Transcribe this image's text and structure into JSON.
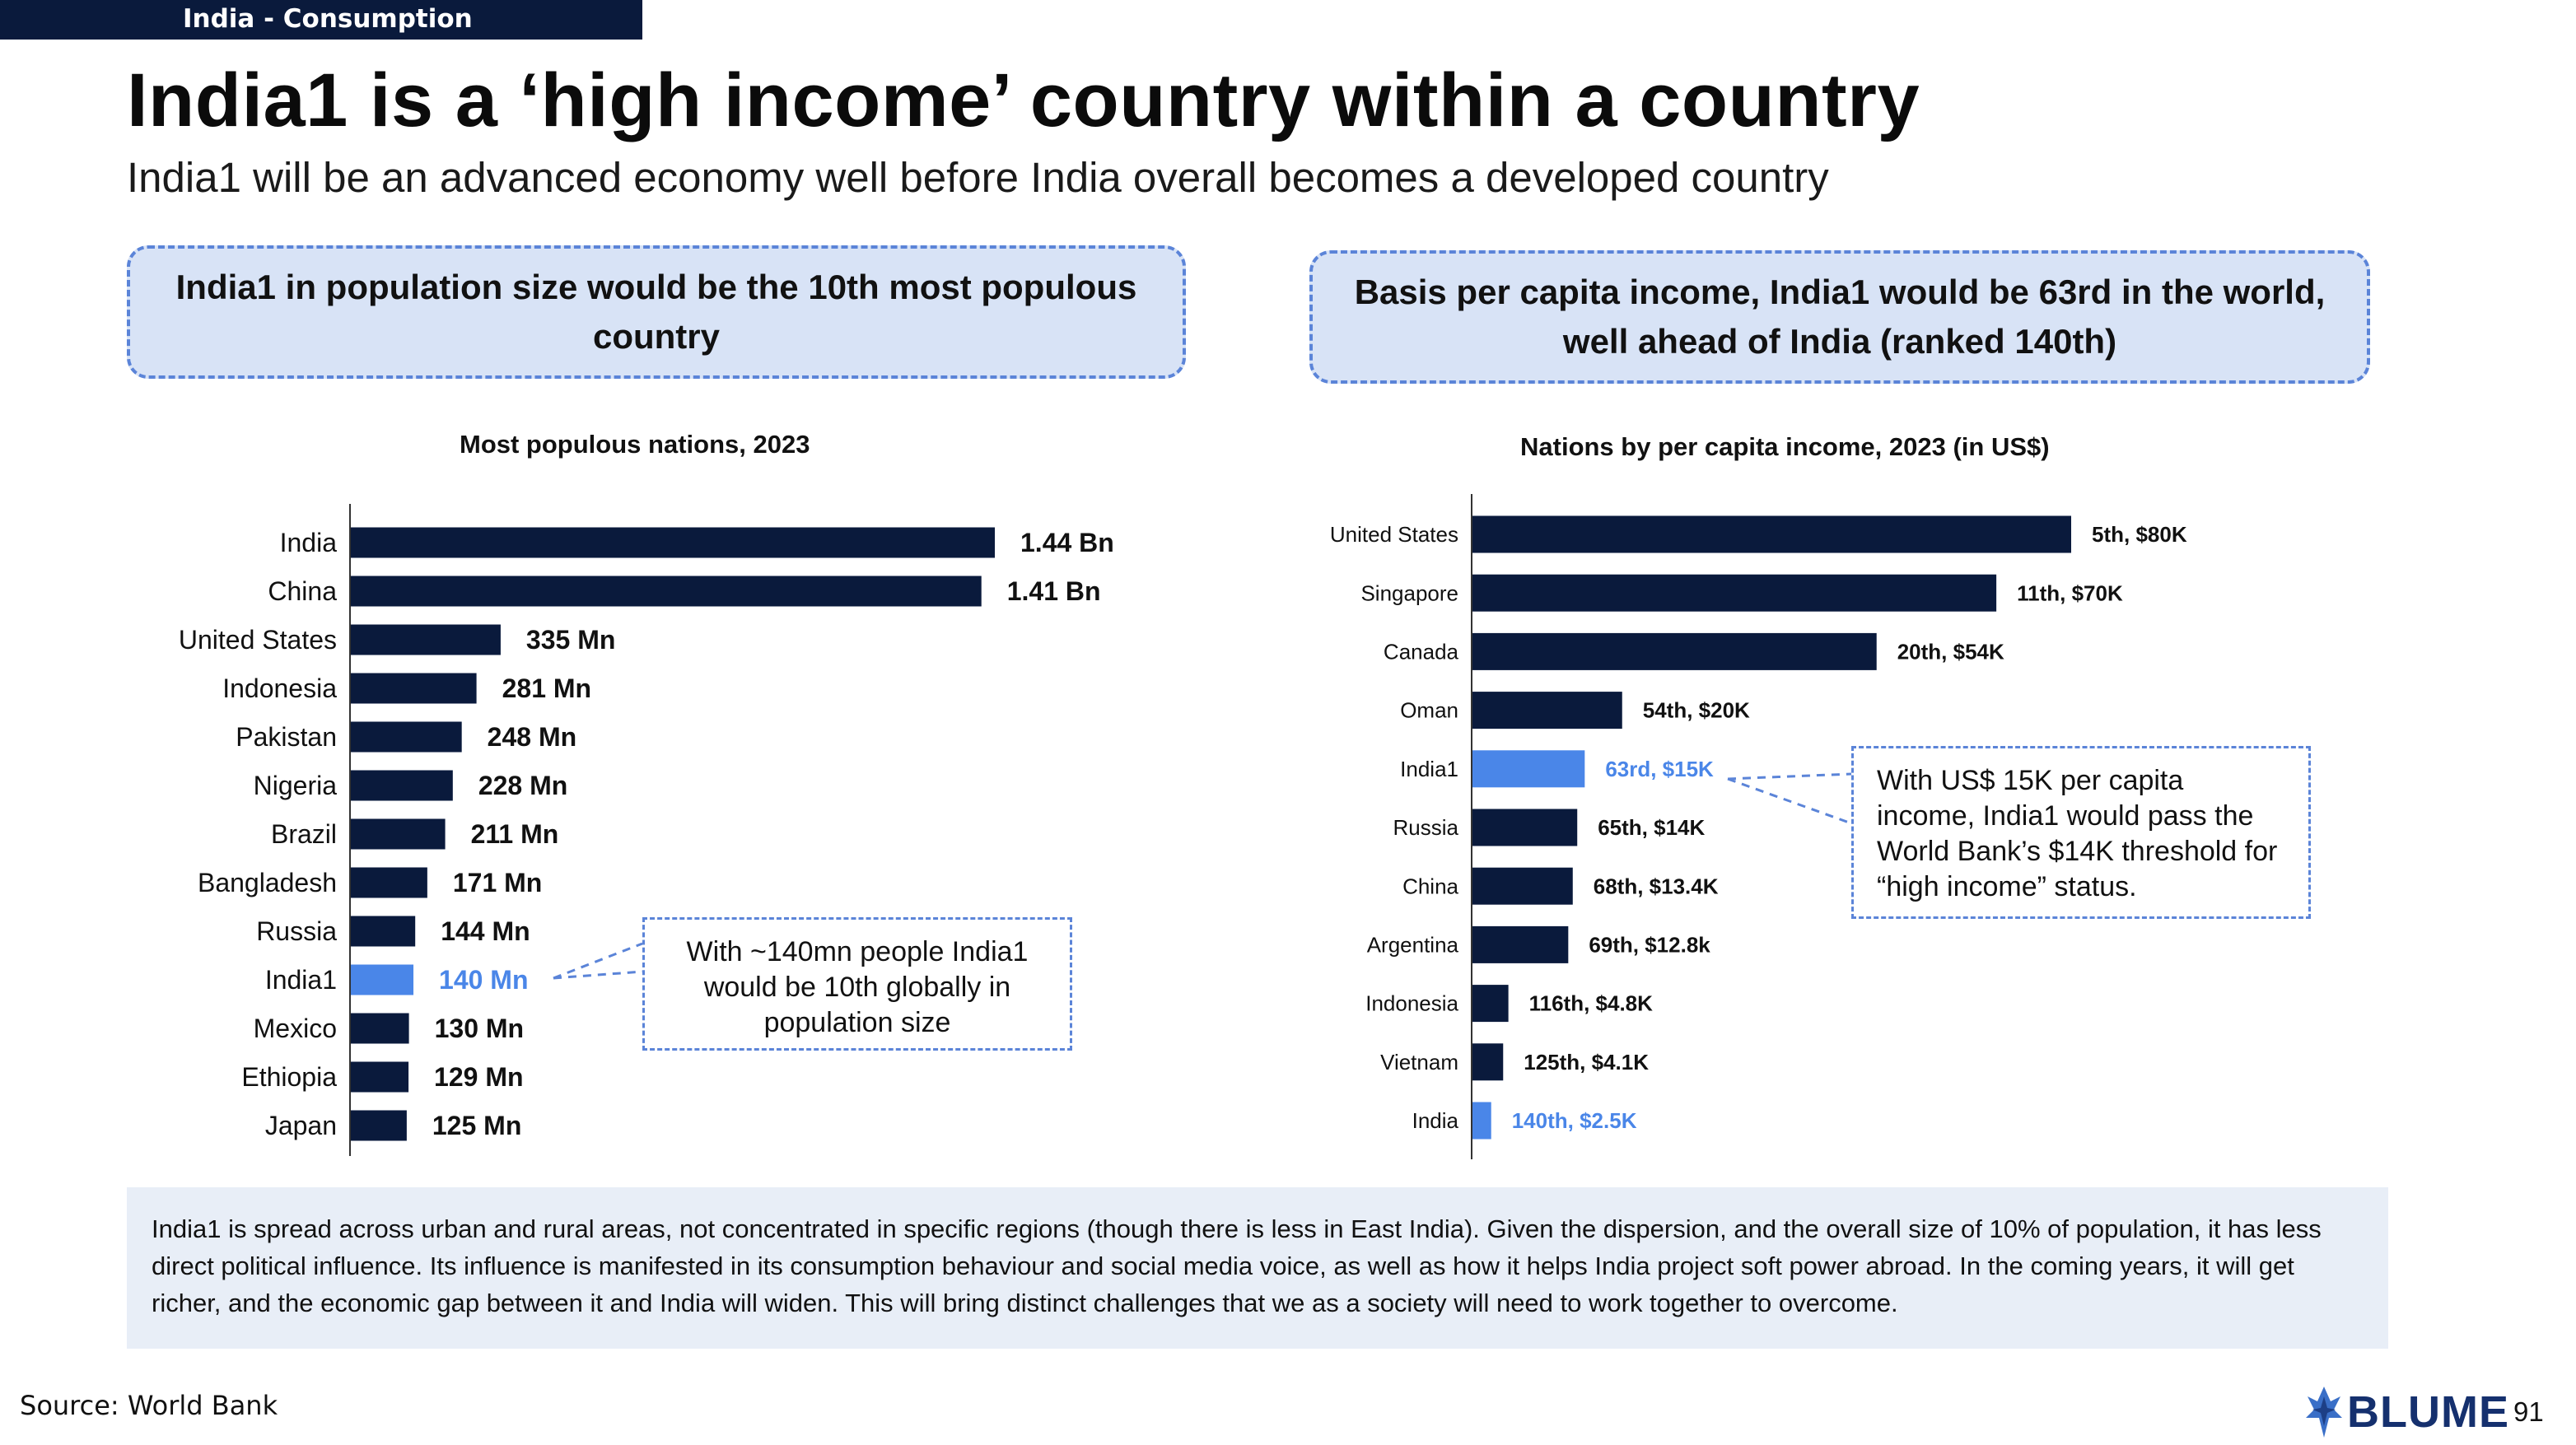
{
  "header": {
    "section_tag": "India - Consumption",
    "title": "India1 is a ‘high income’ country within a country",
    "subtitle": "India1 will be an advanced economy well before India overall becomes a developed country"
  },
  "left_panel": {
    "callout": "India1 in population size would be the 10th most populous country",
    "note": "With ~140mn people India1 would be 10th globally in population size"
  },
  "right_panel": {
    "callout": "Basis per capita income, India1 would be 63rd in the world, well ahead of India (ranked 140th)",
    "note": "With US$ 15K per capita income, India1 would pass the World Bank’s $14K threshold for “high income” status."
  },
  "footer": {
    "text": "India1 is spread across urban and rural areas, not concentrated in specific regions (though there is less in East India). Given the dispersion, and the overall size of 10% of population, it has less direct political influence. Its influence is manifested in its consumption behaviour and social media voice, as well as how it helps India project soft power abroad. In the coming years, it will get richer, and the economic gap between it and India will widen. This will bring distinct challenges that we as a society will need to work together to overcome.",
    "source": "Source: World Bank",
    "logo_text": "BLUME",
    "page_number": "91"
  },
  "colors": {
    "bar": "#0a1a3c",
    "highlight": "#4a86e8",
    "highlight_label": "#4a86e8",
    "callout_bg": "#d8e3f6",
    "callout_border": "#5b84d8"
  },
  "chart_data": [
    {
      "type": "bar",
      "orientation": "horizontal",
      "title": "Most populous nations, 2023",
      "categories": [
        "India",
        "China",
        "United States",
        "Indonesia",
        "Pakistan",
        "Nigeria",
        "Brazil",
        "Bangladesh",
        "Russia",
        "India1",
        "Mexico",
        "Ethiopia",
        "Japan"
      ],
      "values": [
        1440,
        1410,
        335,
        281,
        248,
        228,
        211,
        171,
        144,
        140,
        130,
        129,
        125
      ],
      "unit": "Mn",
      "data_labels": [
        "1.44 Bn",
        "1.41 Bn",
        "335 Mn",
        "281 Mn",
        "248 Mn",
        "228 Mn",
        "211 Mn",
        "171 Mn",
        "144 Mn",
        "140 Mn",
        "130 Mn",
        "129 Mn",
        "125 Mn"
      ],
      "highlight": [
        "India1"
      ],
      "xlim": [
        0,
        1440
      ],
      "grid": false,
      "legend": "none"
    },
    {
      "type": "bar",
      "orientation": "horizontal",
      "title": "Nations by per capita income, 2023 (in US$)",
      "categories": [
        "United States",
        "Singapore",
        "Canada",
        "Oman",
        "India1",
        "Russia",
        "China",
        "Argentina",
        "Indonesia",
        "Vietnam",
        "India"
      ],
      "values": [
        80,
        70,
        54,
        20,
        15,
        14,
        13.4,
        12.8,
        4.8,
        4.1,
        2.5
      ],
      "unit": "US$ K",
      "data_labels": [
        "5th, $80K",
        "11th, $70K",
        "20th, $54K",
        "54th, $20K",
        "63rd, $15K",
        "65th, $14K",
        "68th, $13.4K",
        "69th, $12.8k",
        "116th, $4.8K",
        "125th, $4.1K",
        "140th, $2.5K"
      ],
      "highlight": [
        "India1",
        "India"
      ],
      "xlim": [
        0,
        80
      ],
      "grid": false,
      "legend": "none"
    }
  ]
}
